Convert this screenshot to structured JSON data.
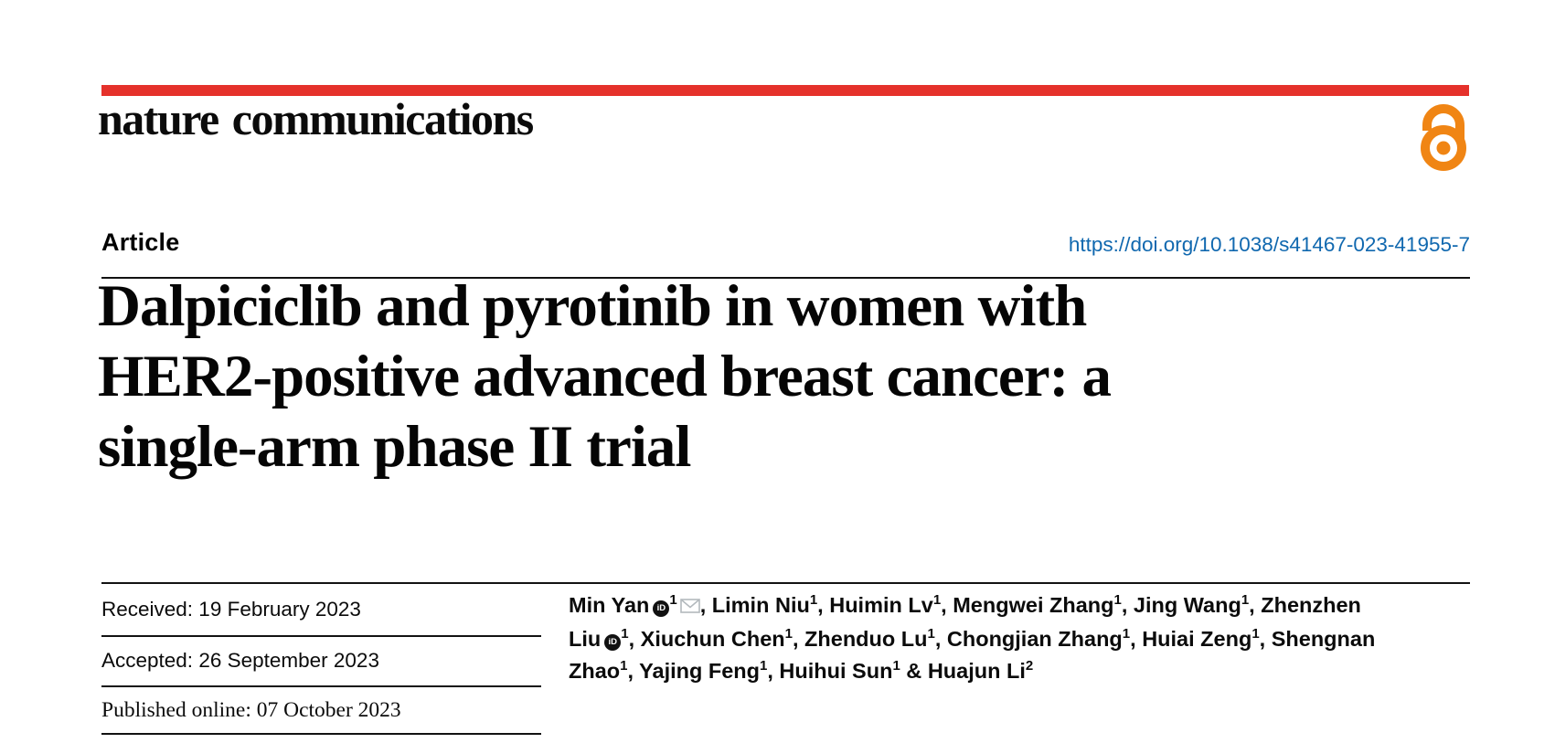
{
  "journal": {
    "wordmark": "nature communications"
  },
  "icons": {
    "open_access": "open-lock-icon",
    "orcid_text": "iD",
    "email": "envelope-icon"
  },
  "colors": {
    "accent_red": "#e5312b",
    "open_access_orange": "#f08514",
    "link_blue": "#1068af",
    "rule_black": "#121212",
    "envelope_gray": "#b3b9bd"
  },
  "header": {
    "article_type": "Article",
    "doi": "https://doi.org/10.1038/s41467-023-41955-7"
  },
  "title": {
    "lines": {
      "0": "Dalpiciclib and pyrotinib in women with",
      "1": "HER2-positive advanced breast cancer: a",
      "2": "single-arm phase II trial"
    },
    "full": "Dalpiciclib and pyrotinib in women with HER2-positive advanced breast cancer: a single-arm phase II trial"
  },
  "dates": [
    {
      "text": "Received: 19 February 2023",
      "style": "sans"
    },
    {
      "text": "Accepted: 26 September 2023",
      "style": "sans"
    },
    {
      "text": "Published online: 07 October 2023",
      "style": "serif"
    }
  ],
  "authors": {
    "list": [
      {
        "name": "Min Yan",
        "sup": "1",
        "orcid": true,
        "email": true
      },
      {
        "name": "Limin Niu",
        "sup": "1"
      },
      {
        "name": "Huimin Lv",
        "sup": "1"
      },
      {
        "name": "Mengwei Zhang",
        "sup": "1"
      },
      {
        "name": "Jing Wang",
        "sup": "1"
      },
      {
        "name": "Zhenzhen Liu",
        "sup": "1",
        "orcid": true
      },
      {
        "name": "Xiuchun Chen",
        "sup": "1"
      },
      {
        "name": "Zhenduo Lu",
        "sup": "1"
      },
      {
        "name": "Chongjian Zhang",
        "sup": "1"
      },
      {
        "name": "Huiai Zeng",
        "sup": "1"
      },
      {
        "name": "Shengnan Zhao",
        "sup": "1"
      },
      {
        "name": "Yajing Feng",
        "sup": "1"
      },
      {
        "name": "Huihui Sun",
        "sup": "1"
      },
      {
        "name": "Huajun Li",
        "sup": "2"
      }
    ],
    "separator": ", ",
    "last_separator": " & "
  }
}
